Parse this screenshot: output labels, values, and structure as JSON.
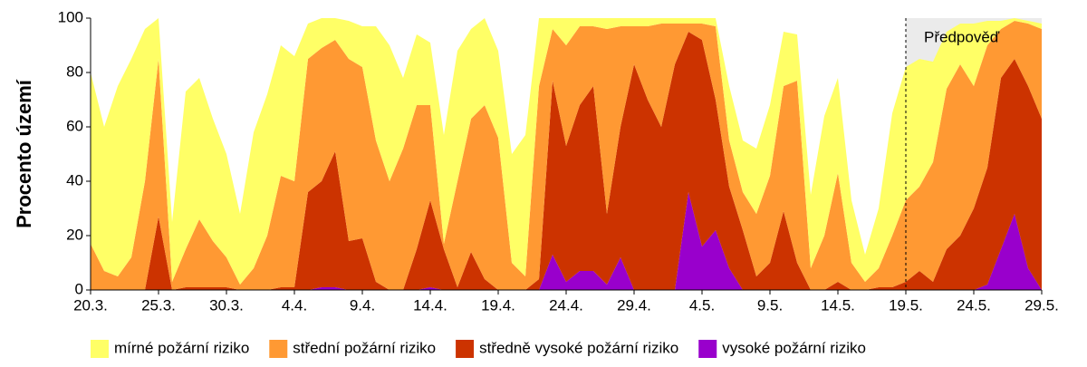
{
  "chart_data": {
    "type": "stacked_area",
    "y_label": "Procento území",
    "categories": [
      "20.3.",
      null,
      null,
      null,
      null,
      "25.3.",
      null,
      null,
      null,
      null,
      "30.3.",
      null,
      null,
      null,
      null,
      "4.4.",
      null,
      null,
      null,
      null,
      "9.4.",
      null,
      null,
      null,
      null,
      "14.4.",
      null,
      null,
      null,
      null,
      "19.4.",
      null,
      null,
      null,
      null,
      "24.4.",
      null,
      null,
      null,
      null,
      "29.4.",
      null,
      null,
      null,
      null,
      "4.5.",
      null,
      null,
      null,
      null,
      "9.5.",
      null,
      null,
      null,
      null,
      "14.5.",
      null,
      null,
      null,
      null,
      "19.5.",
      null,
      null,
      null,
      null,
      "24.5.",
      null,
      null,
      null,
      null,
      "29.5."
    ],
    "series": [
      {
        "name": "mírné požární riziko",
        "color": "#ffff66",
        "values": [
          63,
          53,
          70,
          73,
          56,
          15,
          22,
          58,
          52,
          45,
          38,
          26,
          50,
          52,
          48,
          46,
          13,
          11,
          8,
          14,
          15,
          42,
          50,
          26,
          26,
          23,
          40,
          48,
          33,
          32,
          32,
          40,
          52,
          25,
          4,
          10,
          3,
          3,
          4,
          3,
          3,
          3,
          2,
          2,
          2,
          2,
          3,
          20,
          19,
          24,
          26,
          20,
          17,
          27,
          44,
          35,
          23,
          10,
          22,
          45,
          49,
          47,
          37,
          21,
          15,
          23,
          9,
          3,
          1,
          1,
          2
        ]
      },
      {
        "name": "střední požární riziko",
        "color": "#ff9933",
        "values": [
          17,
          7,
          5,
          12,
          40,
          58,
          3,
          14,
          25,
          17,
          11,
          2,
          8,
          20,
          41,
          39,
          49,
          49,
          41,
          67,
          63,
          52,
          40,
          52,
          53,
          35,
          2,
          39,
          49,
          64,
          56,
          10,
          5,
          71,
          19,
          37,
          29,
          22,
          68,
          37,
          14,
          27,
          38,
          15,
          3,
          6,
          27,
          17,
          14,
          23,
          32,
          46,
          67,
          8,
          20,
          40,
          10,
          3,
          7,
          19,
          30,
          31,
          44,
          59,
          63,
          45,
          45,
          18,
          14,
          23,
          33
        ]
      },
      {
        "name": "středně vysoké požární riziko",
        "color": "#cc3300",
        "values": [
          0,
          0,
          0,
          0,
          0,
          27,
          0,
          1,
          1,
          1,
          1,
          0,
          0,
          0,
          1,
          1,
          36,
          39,
          50,
          18,
          19,
          3,
          0,
          0,
          15,
          32,
          15,
          1,
          14,
          4,
          0,
          0,
          0,
          4,
          64,
          50,
          61,
          68,
          26,
          48,
          83,
          70,
          60,
          83,
          59,
          76,
          48,
          30,
          22,
          5,
          10,
          29,
          10,
          0,
          0,
          3,
          0,
          0,
          1,
          1,
          3,
          7,
          3,
          15,
          20,
          30,
          43,
          63,
          57,
          67,
          63
        ]
      },
      {
        "name": "vysoké požární riziko",
        "color": "#9900cc",
        "values": [
          0,
          0,
          0,
          0,
          0,
          0,
          0,
          0,
          0,
          0,
          0,
          0,
          0,
          0,
          0,
          0,
          0,
          1,
          1,
          0,
          0,
          0,
          0,
          0,
          0,
          1,
          0,
          0,
          0,
          0,
          0,
          0,
          0,
          0,
          13,
          3,
          7,
          7,
          2,
          12,
          0,
          0,
          0,
          0,
          36,
          16,
          22,
          8,
          0,
          0,
          0,
          0,
          0,
          0,
          0,
          0,
          0,
          0,
          0,
          0,
          0,
          0,
          0,
          0,
          0,
          0,
          2,
          15,
          28,
          8,
          0
        ]
      }
    ],
    "ylim": [
      0,
      100
    ],
    "yticks": [
      0,
      20,
      40,
      60,
      80,
      100
    ],
    "forecast": {
      "label": "Předpověď",
      "start": "19.5.",
      "color": "#ebebeb"
    }
  }
}
